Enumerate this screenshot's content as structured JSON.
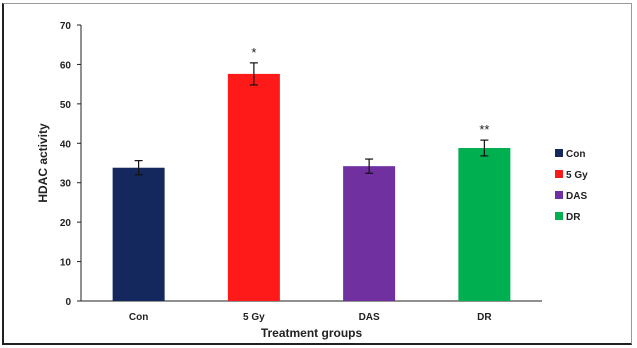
{
  "chart_data": {
    "type": "bar",
    "title": "",
    "xlabel": "Treatment groups",
    "ylabel": "HDAC activity",
    "ylim": [
      0,
      70
    ],
    "yticks": [
      0,
      10,
      20,
      30,
      40,
      50,
      60,
      70
    ],
    "categories": [
      "Con",
      "5 Gy",
      "DAS",
      "DR"
    ],
    "values": [
      33.8,
      57.6,
      34.2,
      38.8
    ],
    "errors": [
      1.8,
      2.8,
      1.8,
      2.0
    ],
    "annotations": [
      "",
      "*",
      "",
      "**"
    ],
    "colors": [
      "#14285e",
      "#ff1a1a",
      "#7030a0",
      "#00b050"
    ],
    "grid": false,
    "legend": {
      "placement": "right",
      "entries": [
        "Con",
        "5 Gy",
        "DAS",
        "DR"
      ]
    }
  }
}
